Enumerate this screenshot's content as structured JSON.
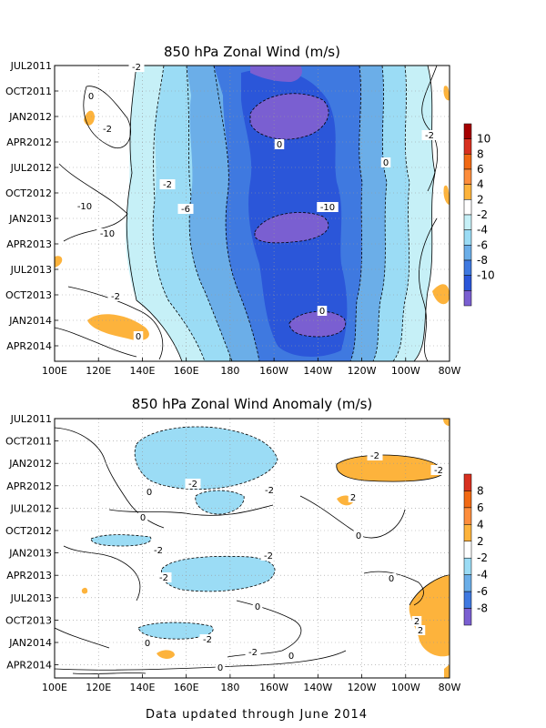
{
  "footer": "Data updated through June 2014",
  "chart_data": [
    {
      "type": "heatmap",
      "title": "850 hPa Zonal Wind (m/s)",
      "x_tick_labels": [
        "100E",
        "120E",
        "140E",
        "160E",
        "180",
        "160W",
        "140W",
        "120W",
        "100W",
        "80W"
      ],
      "y_tick_labels": [
        "JUL2011",
        "OCT2011",
        "JAN2012",
        "APR2012",
        "JUL2012",
        "OCT2012",
        "JAN2013",
        "APR2013",
        "JUL2013",
        "OCT2013",
        "JAN2014",
        "APR2014"
      ],
      "xlim": [
        "100E",
        "80W"
      ],
      "ylim": [
        "JUL2011",
        "JUN2014"
      ],
      "grid": true,
      "colorbar": {
        "labels": [
          "10",
          "8",
          "6",
          "4",
          "2",
          "-2",
          "-4",
          "-6",
          "-8",
          "-10"
        ],
        "colors": [
          "#a50000",
          "#d7301f",
          "#f16913",
          "#fd8d3c",
          "#fdb33c",
          "#ffffff",
          "#c6f0f7",
          "#9bdcf5",
          "#6baee8",
          "#3f79e0",
          "#2b56d9",
          "#7a5fd1"
        ]
      },
      "contour_labels": [
        "-2",
        "0",
        "-2",
        "-2",
        "0",
        "0",
        "-2",
        "-10",
        "-6",
        "-10",
        "-10",
        "-2",
        "0",
        "0"
      ],
      "regions": [
        {
          "kind": "easterly",
          "x": [
            175,
            180,
            174,
            178,
            183,
            176,
            174
          ],
          "y": [
            "JUL2011",
            "OCT2011",
            "JAN2012",
            "JUL2012",
            "JAN2013",
            "JUL2013",
            "JUN2014"
          ],
          "level": -10
        }
      ]
    },
    {
      "type": "heatmap",
      "title": "850 hPa Zonal Wind Anomaly (m/s)",
      "x_tick_labels": [
        "100E",
        "120E",
        "140E",
        "160E",
        "180",
        "160W",
        "140W",
        "120W",
        "100W",
        "80W"
      ],
      "y_tick_labels": [
        "JUL2011",
        "OCT2011",
        "JAN2012",
        "APR2012",
        "JUL2012",
        "OCT2012",
        "JAN2013",
        "APR2013",
        "JUL2013",
        "OCT2013",
        "JAN2014",
        "APR2014"
      ],
      "xlim": [
        "100E",
        "80W"
      ],
      "ylim": [
        "JUL2011",
        "JUN2014"
      ],
      "grid": true,
      "colorbar": {
        "labels": [
          "8",
          "6",
          "4",
          "2",
          "-2",
          "-4",
          "-6",
          "-8"
        ],
        "colors": [
          "#d7301f",
          "#f16913",
          "#fd8d3c",
          "#fdb33c",
          "#ffffff",
          "#9bdcf5",
          "#6baee8",
          "#3f79e0",
          "#7a5fd1"
        ]
      },
      "contour_labels": [
        "-2",
        "-2",
        "-2",
        "2",
        "-2",
        "0",
        "0",
        "-2",
        "-2",
        "-2",
        "0",
        "-2",
        "0",
        "0",
        "0",
        "2",
        "2",
        "0",
        "0",
        "-2"
      ]
    }
  ]
}
